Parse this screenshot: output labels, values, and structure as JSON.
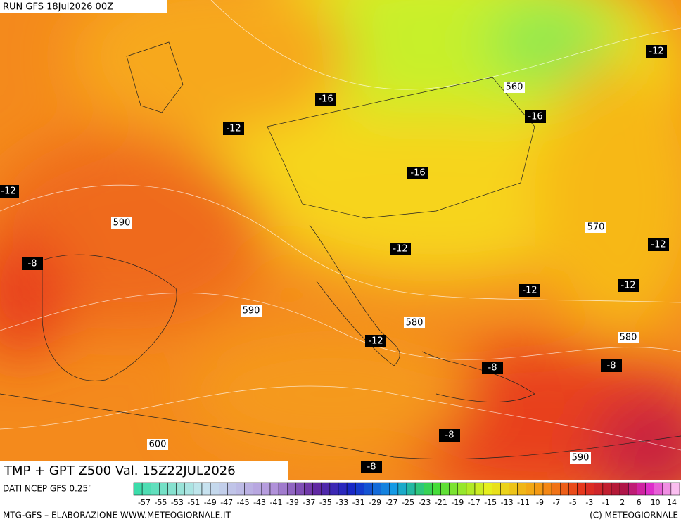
{
  "header": {
    "run": "RUN GFS 18Jul2026 00Z"
  },
  "map": {
    "title": "TMP + GPT Z500 Val. 15Z22JUL2026",
    "temperature_labels": [
      -16,
      -12,
      -12,
      -8,
      -16,
      -16,
      -12,
      -12,
      -12,
      -12,
      -12,
      -12,
      -8,
      -8,
      -8,
      -8
    ],
    "height_labels": [
      590,
      590,
      560,
      570,
      580,
      580,
      600,
      590
    ]
  },
  "legend": {
    "source": "DATI NCEP GFS 0.25°",
    "labels": [
      -57,
      -55,
      -53,
      -51,
      -49,
      -47,
      -45,
      -43,
      -41,
      -39,
      -37,
      -35,
      -33,
      -31,
      -29,
      -27,
      -25,
      -23,
      -21,
      -19,
      -17,
      -15,
      -13,
      -11,
      -9,
      -7,
      -5,
      -3,
      -1,
      2,
      6,
      10,
      14
    ]
  },
  "footer": {
    "left": "MTG-GFS – ELABORAZIONE WWW.METEOGIORNALE.IT",
    "right": "(C) METEOGIORNALE"
  }
}
